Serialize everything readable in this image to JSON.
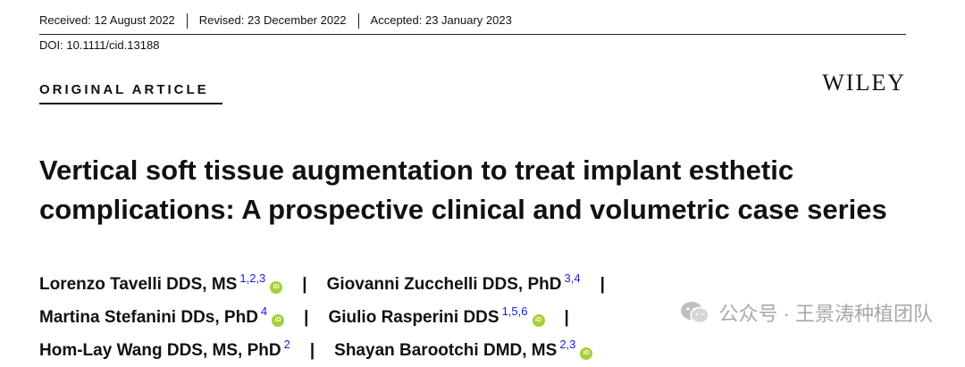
{
  "header": {
    "received": "Received: 12 August 2022",
    "revised": "Revised: 23 December 2022",
    "accepted": "Accepted: 23 January 2023",
    "doi": "DOI: 10.1111/cid.13188"
  },
  "article_type": "ORIGINAL ARTICLE",
  "publisher": "WILEY",
  "title": "Vertical soft tissue augmentation to treat implant esthetic complications: A prospective clinical and volumetric case series",
  "authors": [
    {
      "name": "Lorenzo Tavelli DDS, MS",
      "aff": "1,2,3",
      "orcid": true
    },
    {
      "name": "Giovanni Zucchelli DDS, PhD",
      "aff": "3,4",
      "orcid": false
    },
    {
      "name": "Martina Stefanini DDs, PhD",
      "aff": "4",
      "orcid": true
    },
    {
      "name": "Giulio Rasperini DDS",
      "aff": "1,5,6",
      "orcid": true
    },
    {
      "name": "Hom-Lay Wang DDS, MS, PhD",
      "aff": "2",
      "orcid": false
    },
    {
      "name": "Shayan Barootchi DMD, MS",
      "aff": "2,3",
      "orcid": true
    }
  ],
  "separator": "|",
  "orcid_label": "iD",
  "watermark": "公众号 · 王景涛种植团队",
  "colors": {
    "affiliation": "#1a1ad8",
    "orcid": "#a6ce39",
    "watermark": "#9a9a9a"
  }
}
